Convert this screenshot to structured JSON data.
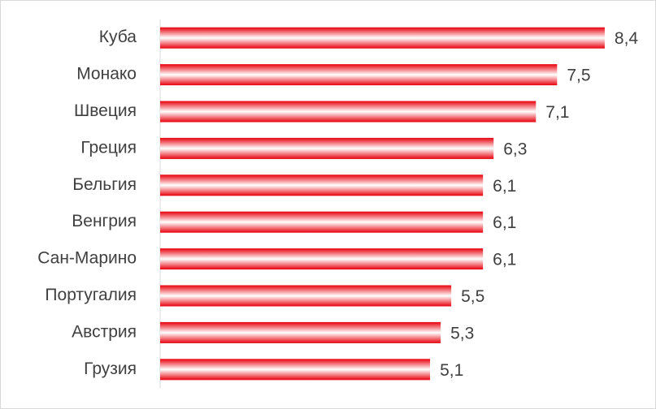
{
  "chart_data": {
    "type": "bar",
    "orientation": "horizontal",
    "color": "#e8000c",
    "categories": [
      "Куба",
      "Монако",
      "Швеция",
      "Греция",
      "Бельгия",
      "Венгрия",
      "Сан-Марино",
      "Португалия",
      "Австрия",
      "Грузия"
    ],
    "values": [
      8.4,
      7.5,
      7.1,
      6.3,
      6.1,
      6.1,
      6.1,
      5.5,
      5.3,
      5.1
    ],
    "value_labels": [
      "8,4",
      "7,5",
      "7,1",
      "6,3",
      "6,1",
      "6,1",
      "6,1",
      "5,5",
      "5,3",
      "5,1"
    ],
    "xlim": [
      0,
      9
    ]
  }
}
